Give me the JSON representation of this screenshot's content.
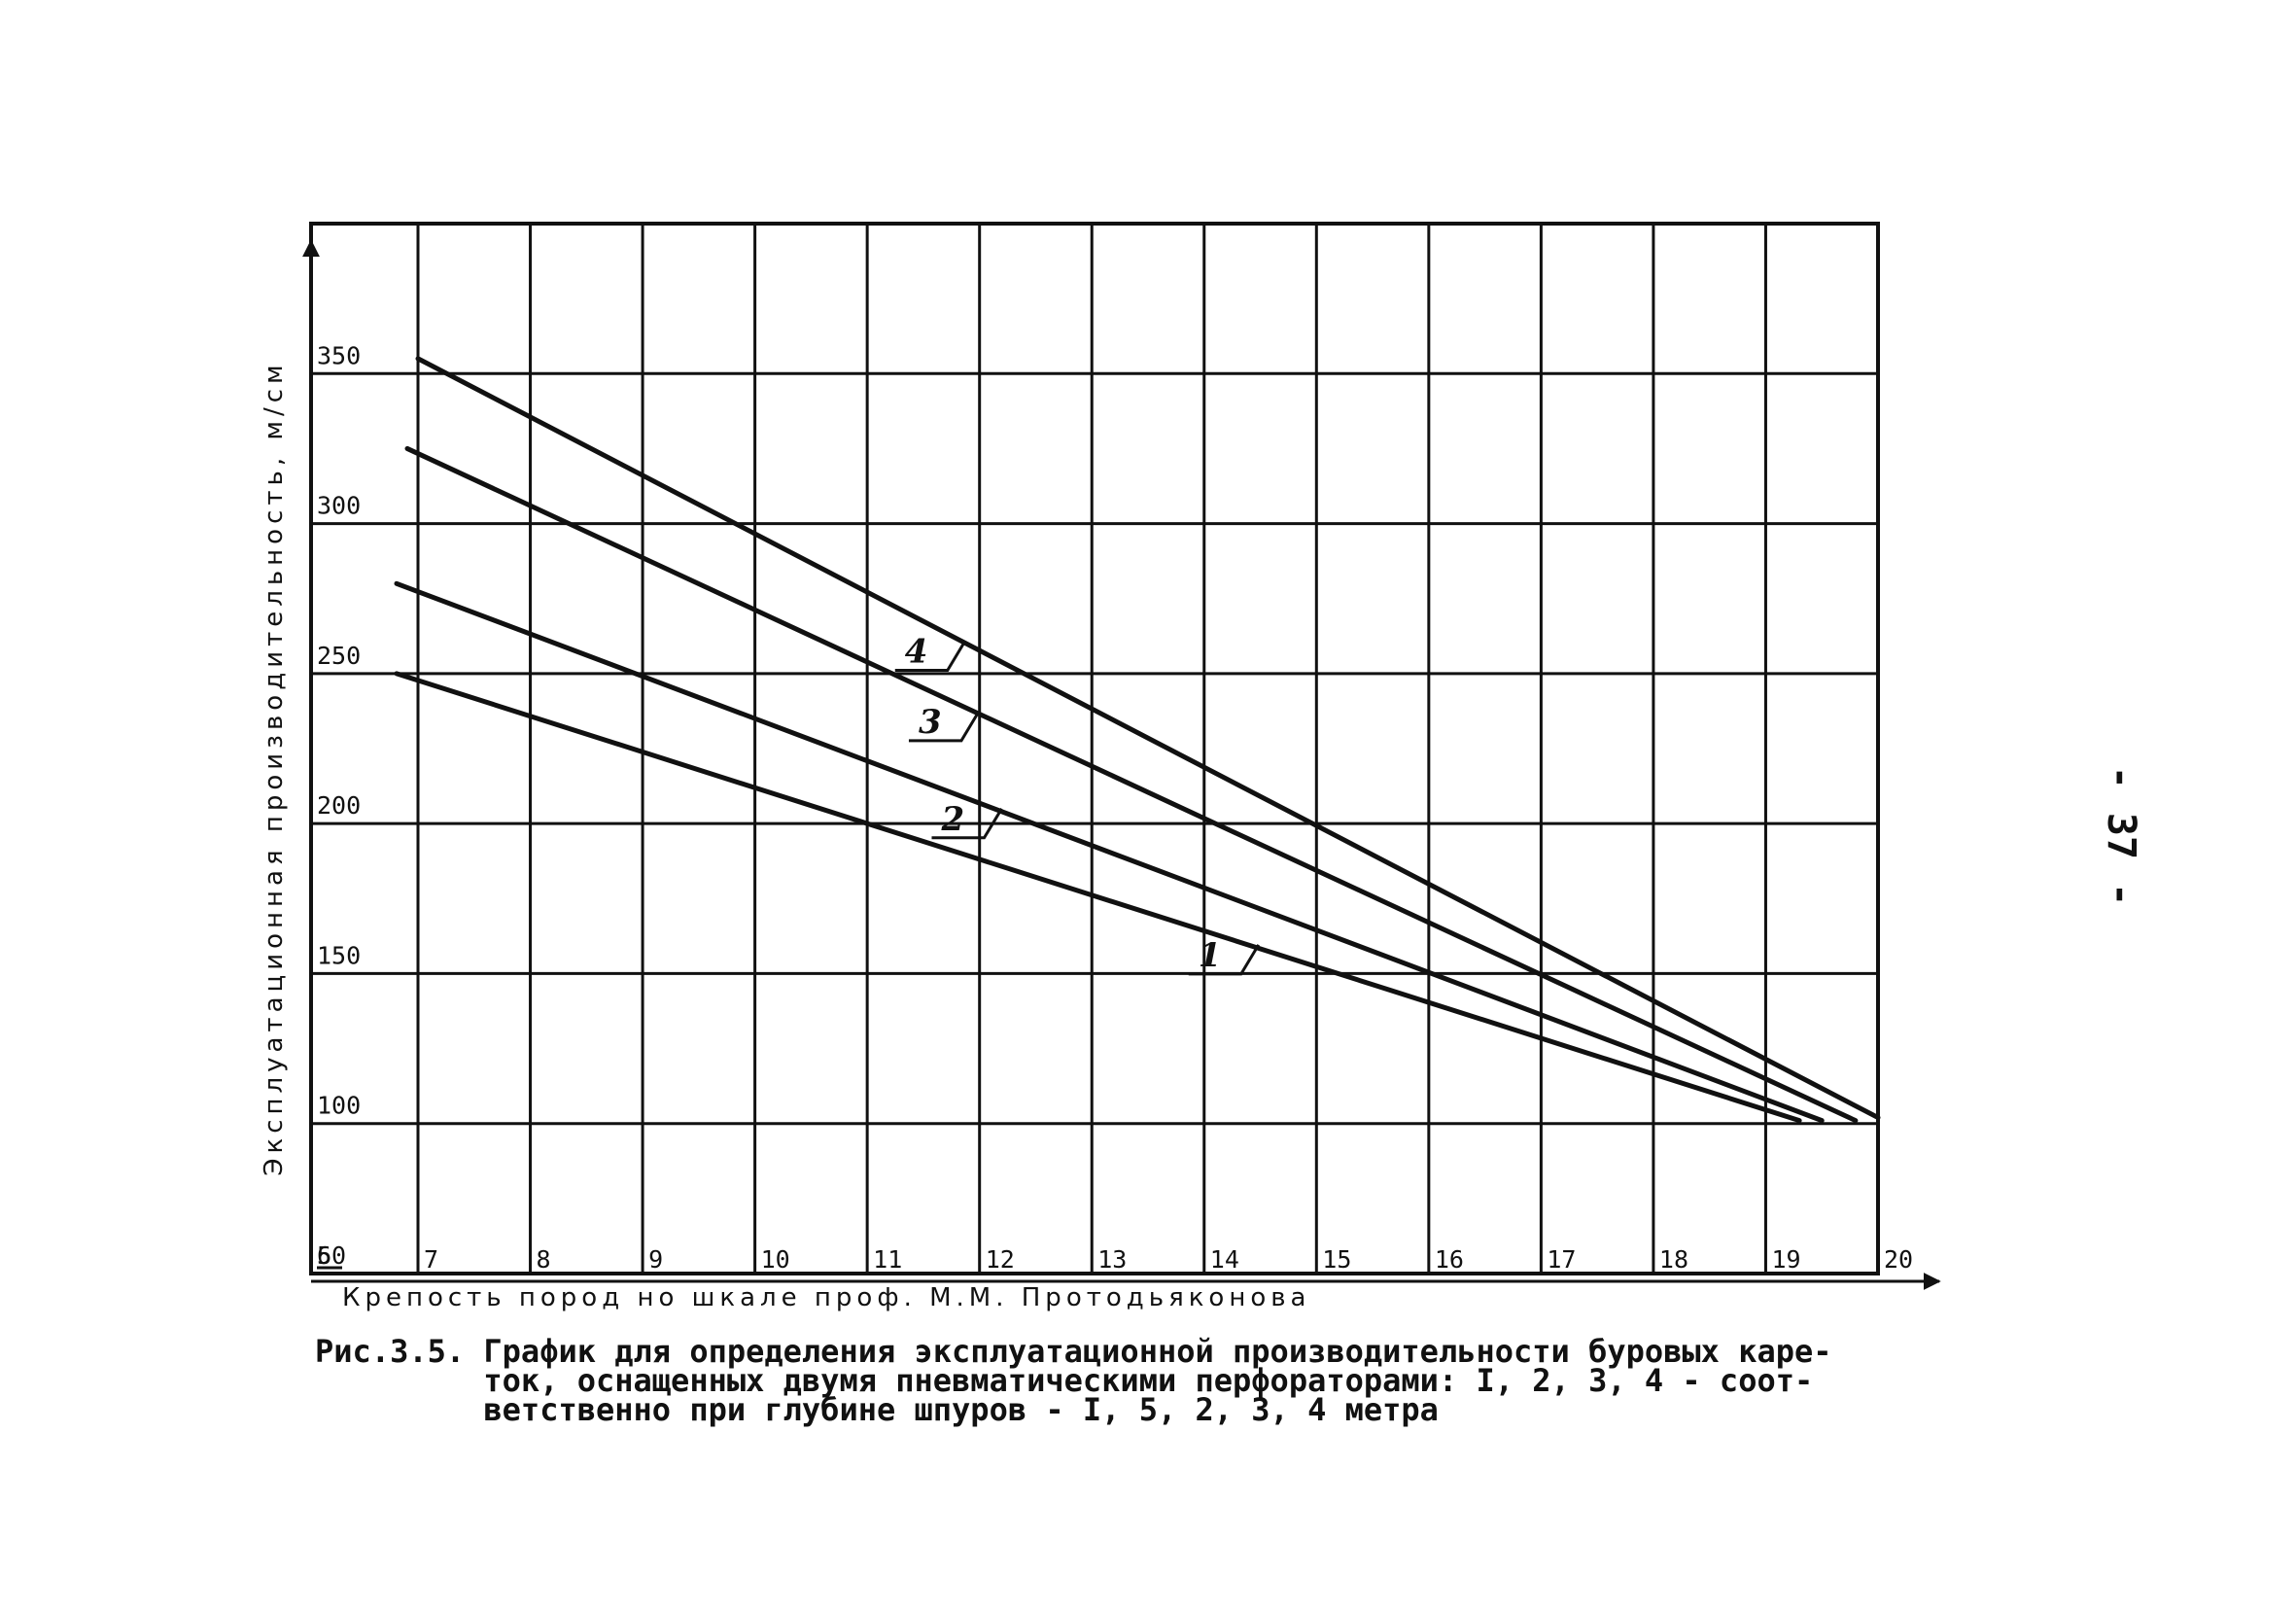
{
  "chart_data": {
    "type": "line",
    "title": "",
    "xlabel": "Крепость пород но шкале проф. М.М. Протодьяконова",
    "ylabel": "Эксплуатационная производительность, м/см",
    "xlim": [
      6,
      20
    ],
    "ylim": [
      50,
      400
    ],
    "x_ticks": [
      "6",
      "7",
      "8",
      "9",
      "10",
      "11",
      "12",
      "13",
      "14",
      "15",
      "16",
      "17",
      "18",
      "19",
      "20"
    ],
    "y_ticks": [
      "50",
      "100",
      "150",
      "200",
      "250",
      "300",
      "350"
    ],
    "grid": true,
    "series": [
      {
        "name": "1",
        "x": [
          6.8,
          19.3
        ],
        "y": [
          250,
          101
        ]
      },
      {
        "name": "2",
        "x": [
          6.8,
          19.5
        ],
        "y": [
          280,
          101
        ]
      },
      {
        "name": "3",
        "x": [
          6.9,
          19.8
        ],
        "y": [
          325,
          101
        ]
      },
      {
        "name": "4",
        "x": [
          7.0,
          20.0
        ],
        "y": [
          355,
          102
        ]
      }
    ]
  },
  "caption": {
    "lines": [
      "Рис.3.5. График для определения эксплуатационной производительности буровых каре-",
      "         ток, оснащенных двумя пневматическими перфораторами: I, 2, 3, 4 - соот-",
      "         ветственно при глубине шпуров - I, 5, 2, 3, 4 метра"
    ]
  },
  "page_number": "- 37 -"
}
